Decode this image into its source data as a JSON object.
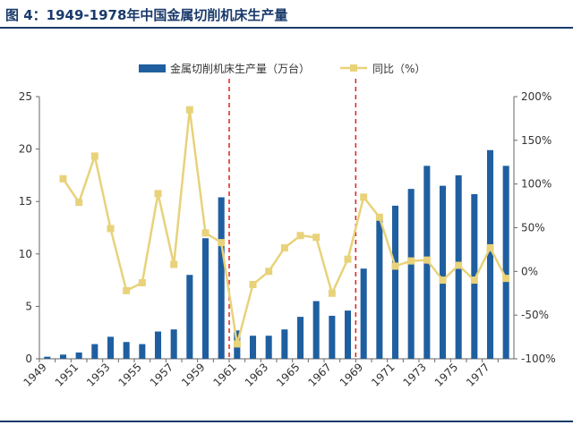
{
  "figure": {
    "title": "图 4：1949-1978年中国金属切削机床生产量"
  },
  "chart_data": {
    "type": "bar",
    "title": "图 4：1949-1978年中国金属切削机床生产量",
    "colors": {
      "bar": "#1f5fa0",
      "line": "#e8d27a",
      "marker": "#e8d27a",
      "divider": "#e02020"
    },
    "x": [
      1949,
      1950,
      1951,
      1952,
      1953,
      1954,
      1955,
      1956,
      1957,
      1958,
      1959,
      1960,
      1961,
      1962,
      1963,
      1964,
      1965,
      1966,
      1967,
      1968,
      1969,
      1970,
      1971,
      1972,
      1973,
      1974,
      1975,
      1976,
      1977,
      1978
    ],
    "x_tick_labels": [
      "1949",
      "1951",
      "1953",
      "1955",
      "1957",
      "1959",
      "1961",
      "1963",
      "1965",
      "1967",
      "1969",
      "1971",
      "1973",
      "1975",
      "1977"
    ],
    "series": [
      {
        "name": "金属切削机床生产量（万台）",
        "type": "bar",
        "axis": "left",
        "values": [
          0.2,
          0.4,
          0.6,
          1.4,
          2.1,
          1.6,
          1.4,
          2.6,
          2.8,
          8.0,
          11.5,
          15.4,
          2.7,
          2.2,
          2.2,
          2.8,
          4.0,
          5.5,
          4.1,
          4.6,
          8.6,
          13.8,
          14.6,
          16.2,
          18.4,
          16.5,
          17.5,
          15.7,
          19.9,
          18.4
        ]
      },
      {
        "name": "同比（%）",
        "type": "line",
        "axis": "right",
        "values": [
          null,
          106,
          79,
          132,
          49,
          -22,
          -13,
          89,
          8,
          185,
          44,
          33,
          -83,
          -15,
          0,
          27,
          41,
          39,
          -25,
          14,
          85,
          62,
          6,
          12,
          13,
          -10,
          7,
          -10,
          27,
          -8
        ]
      }
    ],
    "y_left": {
      "min": 0,
      "max": 25,
      "ticks": [
        "0",
        "5",
        "10",
        "15",
        "20",
        "25"
      ],
      "tick_values": [
        0,
        5,
        10,
        15,
        20,
        25
      ]
    },
    "y_right": {
      "min": -100,
      "max": 200,
      "ticks": [
        "-100%",
        "-50%",
        "0%",
        "50%",
        "100%",
        "150%",
        "200%"
      ],
      "tick_values": [
        -100,
        -50,
        0,
        50,
        100,
        150,
        200
      ]
    },
    "dividers_x": [
      1960.5,
      1968.5
    ],
    "legend": {
      "placement": "top-center"
    }
  }
}
